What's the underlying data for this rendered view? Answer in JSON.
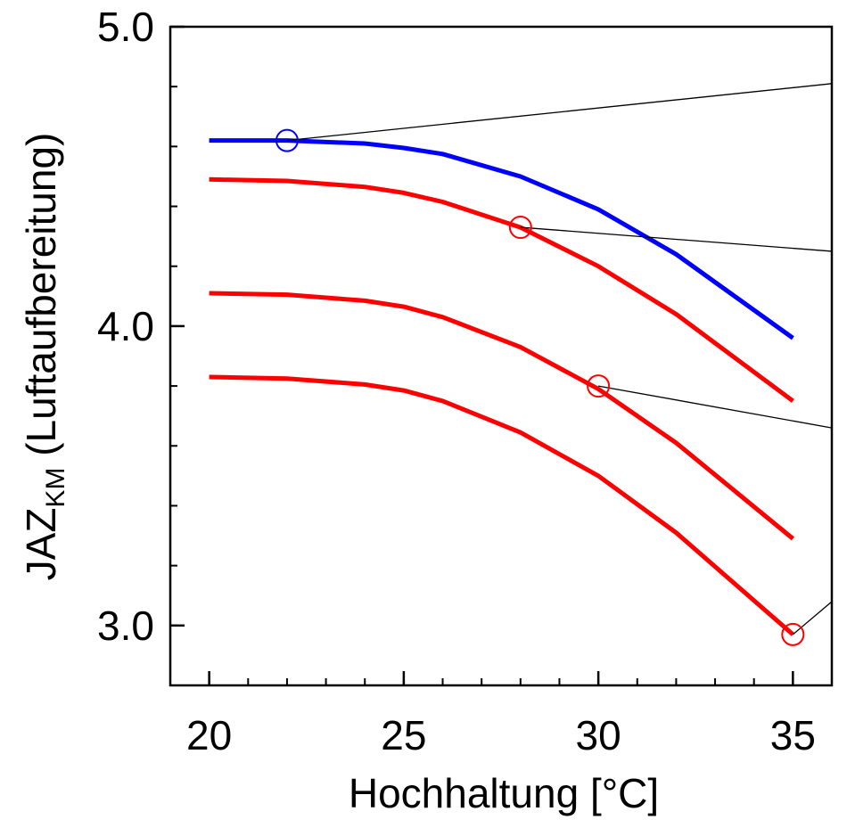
{
  "chart_data": {
    "type": "line",
    "xlabel": "Hochhaltung  [°C]",
    "ylabel": {
      "main": "JAZ",
      "subscript": "KM",
      "suffix": " (Luftaufbereitung)"
    },
    "xlim": [
      19,
      36
    ],
    "ylim": [
      2.8,
      5.0
    ],
    "x_ticks": [
      20,
      25,
      30,
      35
    ],
    "x_tick_labels": [
      "20",
      "25",
      "30",
      "35"
    ],
    "x_minor_step": 1,
    "y_ticks": [
      3.0,
      4.0,
      5.0
    ],
    "y_tick_labels": [
      "3.0",
      "4.0",
      "5.0"
    ],
    "y_minor_step": 0.2,
    "grid": false,
    "x": [
      20,
      22,
      24,
      25,
      26,
      28,
      30,
      32,
      35
    ],
    "series": [
      {
        "color": "#0000ff",
        "values": [
          4.62,
          4.62,
          4.61,
          4.595,
          4.575,
          4.5,
          4.39,
          4.24,
          3.96
        ]
      },
      {
        "color": "#ff0000",
        "values": [
          4.49,
          4.485,
          4.465,
          4.445,
          4.415,
          4.33,
          4.2,
          4.04,
          3.75
        ]
      },
      {
        "color": "#ff0000",
        "values": [
          4.11,
          4.105,
          4.085,
          4.065,
          4.03,
          3.93,
          3.79,
          3.61,
          3.29
        ]
      },
      {
        "color": "#ff0000",
        "values": [
          3.83,
          3.825,
          3.805,
          3.785,
          3.75,
          3.645,
          3.5,
          3.31,
          2.97
        ]
      }
    ],
    "annotations": [
      {
        "series": 0,
        "x": 22,
        "y": 4.62,
        "color": "#0000ff",
        "target": [
          36,
          4.81
        ]
      },
      {
        "series": 1,
        "x": 28,
        "y": 4.33,
        "color": "#ff0000",
        "target": [
          36,
          4.25
        ]
      },
      {
        "series": 2,
        "x": 30,
        "y": 3.8,
        "color": "#ff0000",
        "target": [
          36,
          3.66
        ]
      },
      {
        "series": 3,
        "x": 35,
        "y": 2.97,
        "color": "#ff0000",
        "target": [
          36,
          3.08
        ]
      }
    ]
  }
}
